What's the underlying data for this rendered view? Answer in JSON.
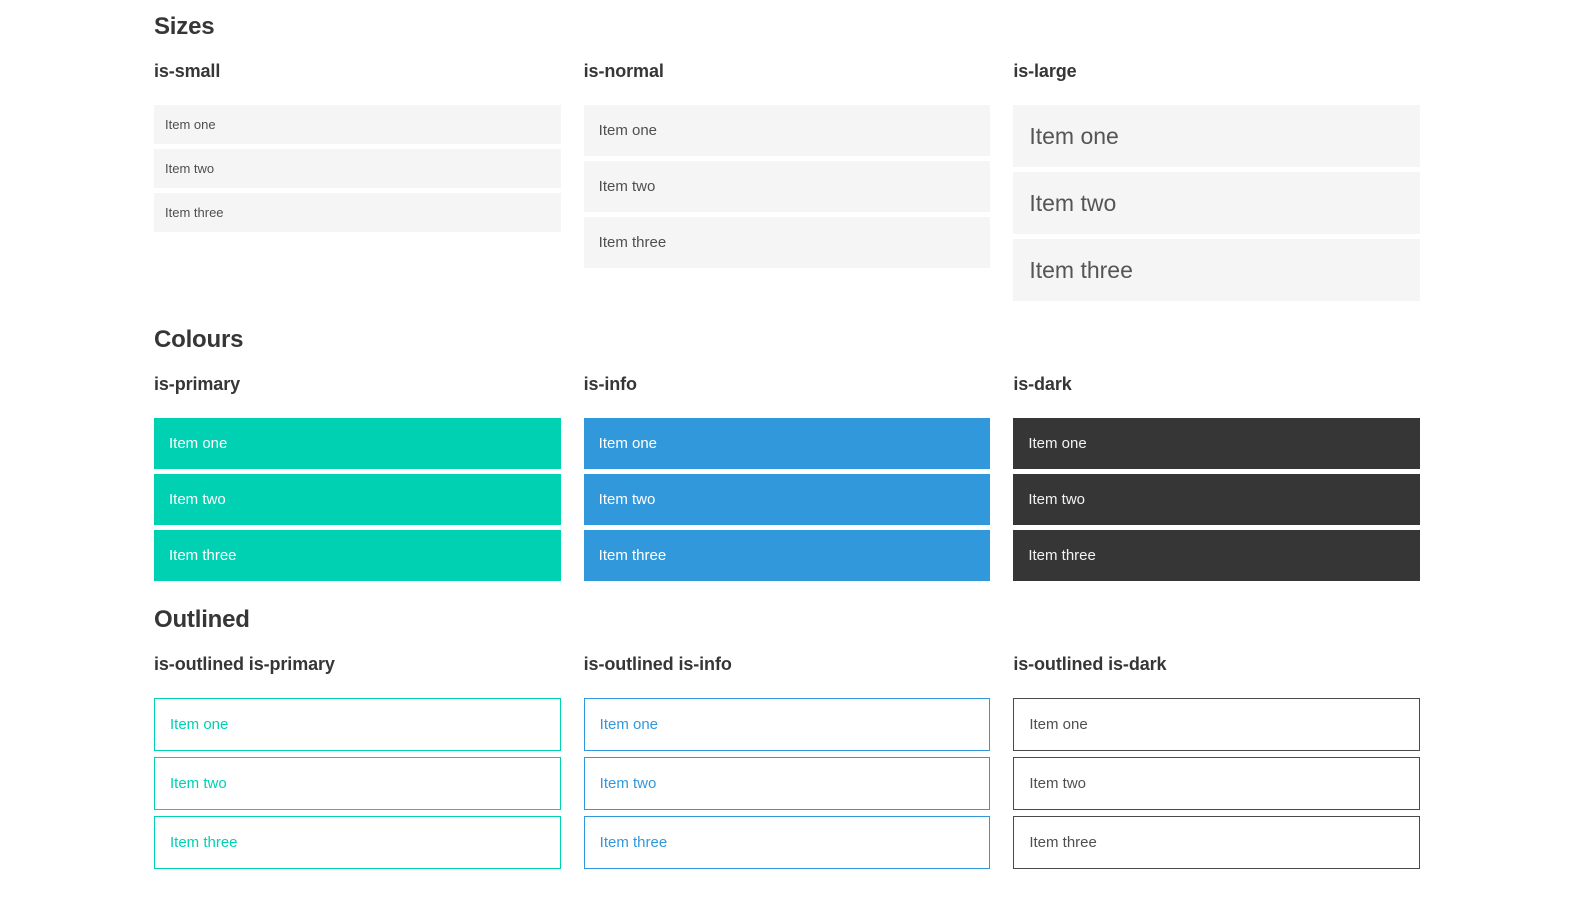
{
  "colors": {
    "page_background": "#ffffff",
    "heading_text": "#363636",
    "item_background": "#f5f5f5",
    "item_text": "#4f4f4f",
    "primary": "#00d1b2",
    "info": "#3298dc",
    "dark": "#363636",
    "dark_outline": "#4a4a4a",
    "white_text": "#ffffff",
    "dark_item_text": "#f2f2f2"
  },
  "sections": [
    {
      "title": "Sizes",
      "columns": [
        {
          "heading": "is-small",
          "variant": "size-small",
          "items": [
            "Item one",
            "Item two",
            "Item three"
          ]
        },
        {
          "heading": "is-normal",
          "variant": "size-normal",
          "items": [
            "Item one",
            "Item two",
            "Item three"
          ]
        },
        {
          "heading": "is-large",
          "variant": "size-large",
          "items": [
            "Item one",
            "Item two",
            "Item three"
          ]
        }
      ]
    },
    {
      "title": "Colours",
      "columns": [
        {
          "heading": "is-primary",
          "variant": "color-primary",
          "items": [
            "Item one",
            "Item two",
            "Item three"
          ]
        },
        {
          "heading": "is-info",
          "variant": "color-info",
          "items": [
            "Item one",
            "Item two",
            "Item three"
          ]
        },
        {
          "heading": "is-dark",
          "variant": "color-dark",
          "items": [
            "Item one",
            "Item two",
            "Item three"
          ]
        }
      ]
    },
    {
      "title": "Outlined",
      "columns": [
        {
          "heading": "is-outlined is-primary",
          "variant": "outlined-primary",
          "items": [
            "Item one",
            "Item two",
            "Item three"
          ]
        },
        {
          "heading": "is-outlined is-info",
          "variant": "outlined-info",
          "items": [
            "Item one",
            "Item two",
            "Item three"
          ]
        },
        {
          "heading": "is-outlined is-dark",
          "variant": "outlined-dark",
          "items": [
            "Item one",
            "Item two",
            "Item three"
          ]
        }
      ]
    }
  ]
}
